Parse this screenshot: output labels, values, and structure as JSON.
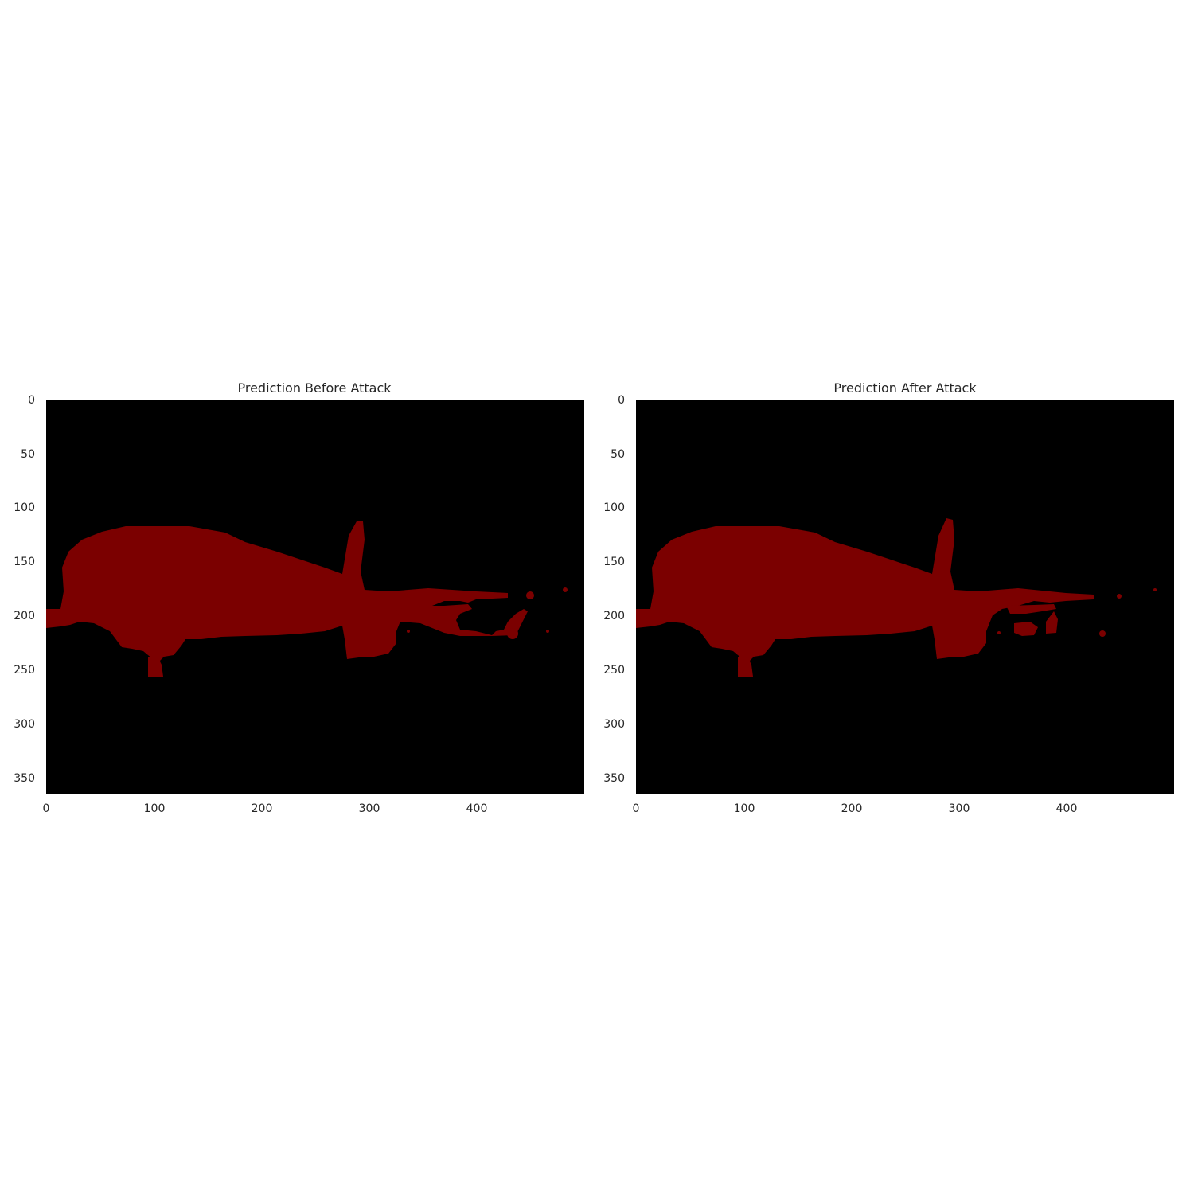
{
  "figure": {
    "panels": [
      {
        "title": "Prediction Before Attack",
        "y_ticks": [
          "0",
          "50",
          "100",
          "150",
          "200",
          "250",
          "300",
          "350"
        ],
        "x_ticks": [
          "0",
          "100",
          "200",
          "300",
          "400"
        ]
      },
      {
        "title": "Prediction After Attack",
        "y_ticks": [
          "0",
          "50",
          "100",
          "150",
          "200",
          "250",
          "300",
          "350"
        ],
        "x_ticks": [
          "0",
          "100",
          "200",
          "300",
          "400"
        ]
      }
    ],
    "colors": {
      "background": "#000000",
      "segment": "#7b0000"
    }
  }
}
